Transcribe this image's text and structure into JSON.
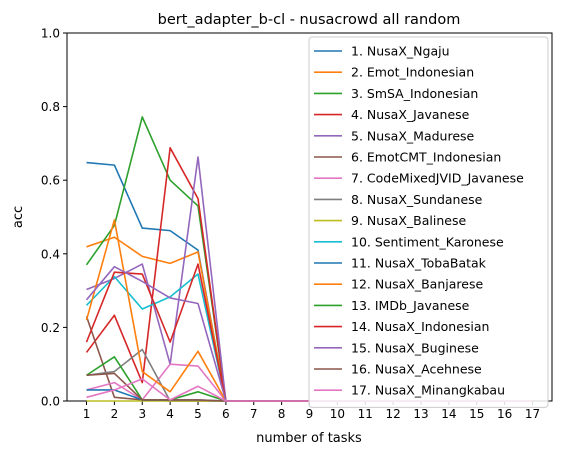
{
  "chart_data": {
    "type": "line",
    "title": "bert_adapter_b-cl - nusacrowd all random",
    "xlabel": "number of tasks",
    "ylabel": "acc",
    "x": [
      1,
      2,
      3,
      4,
      5,
      6,
      7,
      8,
      9,
      10,
      11,
      12,
      13,
      14,
      15,
      16,
      17
    ],
    "xlim": [
      0.3,
      17.7
    ],
    "ylim": [
      0,
      1
    ],
    "yticks": [
      "0.0",
      "0.2",
      "0.4",
      "0.6",
      "0.8",
      "1.0"
    ],
    "xticks": [
      "1",
      "2",
      "3",
      "4",
      "5",
      "6",
      "7",
      "8",
      "9",
      "10",
      "11",
      "12",
      "13",
      "14",
      "15",
      "16",
      "17"
    ],
    "legend_position": "upper right",
    "series": [
      {
        "name": "1. NusaX_Ngaju",
        "color": "#1f77b4",
        "values": [
          0.648,
          0.641,
          0.47,
          0.463,
          0.41,
          0,
          0,
          0,
          0,
          0,
          0,
          0,
          0,
          0,
          0,
          0,
          0
        ]
      },
      {
        "name": "2. Emot_Indonesian",
        "color": "#ff7f0e",
        "values": [
          0.419,
          0.445,
          0.393,
          0.374,
          0.405,
          0,
          0,
          0,
          0,
          0,
          0,
          0,
          0,
          0,
          0,
          0,
          0
        ]
      },
      {
        "name": "3. SmSA_Indonesian",
        "color": "#2ca02c",
        "values": [
          0.37,
          0.477,
          0.772,
          0.6,
          0.53,
          0,
          0,
          0,
          0,
          0,
          0,
          0,
          0,
          0,
          0,
          0,
          0
        ]
      },
      {
        "name": "4. NusaX_Javanese",
        "color": "#d62728",
        "values": [
          0.132,
          0.233,
          0.05,
          0.688,
          0.55,
          0,
          0,
          0,
          0,
          0,
          0,
          0,
          0,
          0,
          0,
          0,
          0
        ]
      },
      {
        "name": "5. NusaX_Madurese",
        "color": "#9467bd",
        "values": [
          0.303,
          0.333,
          0.372,
          0.1,
          0.663,
          0,
          0,
          0,
          0,
          0,
          0,
          0,
          0,
          0,
          0,
          0,
          0
        ]
      },
      {
        "name": "6. EmotCMT_Indonesian",
        "color": "#8c564b",
        "values": [
          0.23,
          0.01,
          0.003,
          0,
          0,
          0,
          0,
          0,
          0,
          0,
          0,
          0,
          0,
          0,
          0,
          0,
          0
        ]
      },
      {
        "name": "7. CodeMixedJVID_Javanese",
        "color": "#e377c2",
        "values": [
          0.03,
          0.05,
          0.003,
          0.1,
          0.095,
          0,
          0,
          0,
          0,
          0,
          0,
          0,
          0,
          0,
          0,
          0,
          0
        ]
      },
      {
        "name": "8. NusaX_Sundanese",
        "color": "#7f7f7f",
        "values": [
          0.07,
          0.08,
          0.14,
          0,
          0,
          0,
          0,
          0,
          0,
          0,
          0,
          0,
          0,
          0,
          0,
          0,
          0
        ]
      },
      {
        "name": "9. NusaX_Balinese",
        "color": "#bcbd22",
        "values": [
          0,
          0,
          0,
          0,
          0,
          0,
          0,
          0,
          0,
          0,
          0,
          0,
          0,
          0,
          0,
          0,
          0
        ]
      },
      {
        "name": "10. Sentiment_Karonese",
        "color": "#17becf",
        "values": [
          0.26,
          0.338,
          0.25,
          0.283,
          0.345,
          0,
          0,
          0,
          0,
          0,
          0,
          0,
          0,
          0,
          0,
          0,
          0
        ]
      },
      {
        "name": "11. NusaX_TobaBatak",
        "color": "#1f77b4",
        "values": [
          0.03,
          0.03,
          0.003,
          0.003,
          0.003,
          0,
          0,
          0,
          0,
          0,
          0,
          0,
          0,
          0,
          0,
          0,
          0
        ]
      },
      {
        "name": "12. NusaX_Banjarese",
        "color": "#ff7f0e",
        "values": [
          0.22,
          0.492,
          0.08,
          0.025,
          0.135,
          0,
          0,
          0,
          0,
          0,
          0,
          0,
          0,
          0,
          0,
          0,
          0
        ]
      },
      {
        "name": "13. IMDb_Javanese",
        "color": "#2ca02c",
        "values": [
          0.07,
          0.12,
          0.003,
          0.003,
          0.025,
          0,
          0,
          0,
          0,
          0,
          0,
          0,
          0,
          0,
          0,
          0,
          0
        ]
      },
      {
        "name": "14. NusaX_Indonesian",
        "color": "#d62728",
        "values": [
          0.16,
          0.35,
          0.345,
          0.16,
          0.372,
          0,
          0,
          0,
          0,
          0,
          0,
          0,
          0,
          0,
          0,
          0,
          0
        ]
      },
      {
        "name": "15. NusaX_Buginese",
        "color": "#9467bd",
        "values": [
          0.275,
          0.365,
          0.325,
          0.28,
          0.265,
          0,
          0,
          0,
          0,
          0,
          0,
          0,
          0,
          0,
          0,
          0,
          0
        ]
      },
      {
        "name": "16. NusaX_Acehnese",
        "color": "#8c564b",
        "values": [
          0.07,
          0.075,
          0.003,
          0.003,
          0.003,
          0,
          0,
          0,
          0,
          0,
          0,
          0,
          0,
          0,
          0,
          0,
          0
        ]
      },
      {
        "name": "17. NusaX_Minangkabau",
        "color": "#e377c2",
        "values": [
          0.01,
          0.03,
          0.06,
          0.003,
          0.04,
          0,
          0,
          0,
          0,
          0,
          0,
          0,
          0,
          0,
          0,
          0,
          0
        ]
      }
    ]
  }
}
